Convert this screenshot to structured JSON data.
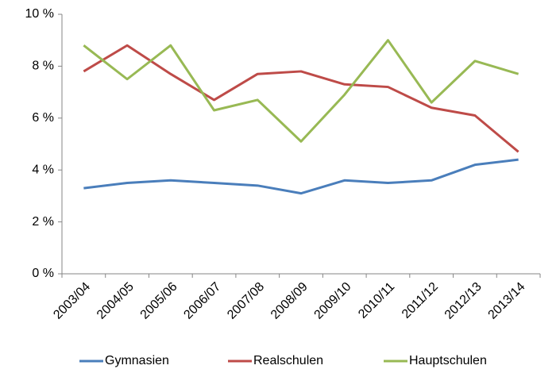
{
  "chart_data": {
    "type": "line",
    "categories": [
      "2003/04",
      "2004/05",
      "2005/06",
      "2006/07",
      "2007/08",
      "2008/09",
      "2009/10",
      "2010/11",
      "2011/12",
      "2012/13",
      "2013/14"
    ],
    "series": [
      {
        "name": "Gymnasien",
        "color": "#4a7ebb",
        "values": [
          3.3,
          3.5,
          3.6,
          3.5,
          3.4,
          3.1,
          3.6,
          3.5,
          3.6,
          4.2,
          4.4
        ]
      },
      {
        "name": "Realschulen",
        "color": "#be4b48",
        "values": [
          7.8,
          8.8,
          7.7,
          6.7,
          7.7,
          7.8,
          7.3,
          7.2,
          6.4,
          6.1,
          4.7
        ]
      },
      {
        "name": "Hauptschulen",
        "color": "#98b954",
        "values": [
          8.8,
          7.5,
          8.8,
          6.3,
          6.7,
          5.1,
          6.9,
          9.0,
          6.6,
          8.2,
          7.7
        ]
      }
    ],
    "ylim": [
      0,
      10
    ],
    "yticks": [
      {
        "value": 0,
        "label": "0 %"
      },
      {
        "value": 2,
        "label": "2 %"
      },
      {
        "value": 4,
        "label": "4 %"
      },
      {
        "value": 6,
        "label": "6 %"
      },
      {
        "value": 8,
        "label": "8 %"
      },
      {
        "value": 10,
        "label": "10 %"
      }
    ],
    "grid": false,
    "legend": "bottom"
  }
}
